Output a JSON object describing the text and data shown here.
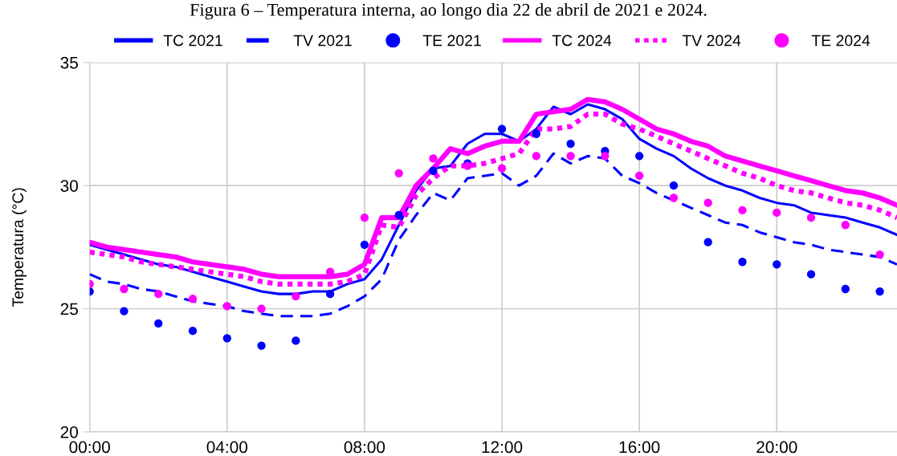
{
  "chart_data": {
    "type": "line",
    "title": "Figura 6 – Temperatura interna, ao longo dia 22 de abril de 2021 e 2024.",
    "ylabel": "Temperatura (°C)",
    "xlim": [
      0,
      23.5
    ],
    "ylim": [
      20,
      35
    ],
    "yticks": [
      20,
      25,
      30,
      35
    ],
    "xticks": [
      {
        "value": 0,
        "label": "00:00"
      },
      {
        "value": 4,
        "label": "04:00"
      },
      {
        "value": 8,
        "label": "08:00"
      },
      {
        "value": 12,
        "label": "12:00"
      },
      {
        "value": 16,
        "label": "16:00"
      },
      {
        "value": 20,
        "label": "20:00"
      }
    ],
    "grid": true,
    "legend": "top",
    "x": [
      0,
      0.5,
      1,
      1.5,
      2,
      2.5,
      3,
      3.5,
      4,
      4.5,
      5,
      5.5,
      6,
      6.5,
      7,
      7.5,
      8,
      8.5,
      9,
      9.5,
      10,
      10.5,
      11,
      11.5,
      12,
      12.5,
      13,
      13.5,
      14,
      14.5,
      15,
      15.5,
      16,
      16.5,
      17,
      17.5,
      18,
      18.5,
      19,
      19.5,
      20,
      20.5,
      21,
      21.5,
      22,
      22.5,
      23,
      23.5
    ],
    "series": [
      {
        "name": "TC 2021",
        "line_style": "solid",
        "color": "#0000ff",
        "values": [
          27.6,
          27.4,
          27.2,
          27.0,
          26.8,
          26.7,
          26.5,
          26.3,
          26.1,
          25.9,
          25.7,
          25.6,
          25.6,
          25.7,
          25.7,
          26.0,
          26.2,
          27.0,
          28.4,
          29.8,
          30.7,
          30.8,
          31.7,
          32.1,
          32.1,
          31.8,
          32.3,
          33.2,
          32.9,
          33.3,
          33.1,
          32.7,
          31.9,
          31.5,
          31.2,
          30.7,
          30.3,
          30.0,
          29.8,
          29.5,
          29.3,
          29.2,
          28.9,
          28.8,
          28.7,
          28.5,
          28.3,
          28.0
        ]
      },
      {
        "name": "TV 2021",
        "line_style": "dashed",
        "color": "#0000ff",
        "values": [
          26.4,
          26.1,
          26.0,
          25.8,
          25.7,
          25.5,
          25.3,
          25.2,
          25.1,
          24.9,
          24.8,
          24.7,
          24.7,
          24.7,
          24.8,
          25.1,
          25.5,
          26.2,
          27.8,
          28.8,
          29.7,
          29.4,
          30.3,
          30.4,
          30.5,
          30.0,
          30.4,
          31.3,
          30.9,
          31.2,
          31.1,
          30.4,
          30.1,
          29.7,
          29.4,
          29.1,
          28.8,
          28.5,
          28.4,
          28.1,
          27.9,
          27.7,
          27.6,
          27.4,
          27.3,
          27.2,
          27.1,
          26.8
        ]
      },
      {
        "name": "TE 2021",
        "type": "scatter",
        "marker": "circle",
        "color": "#0000ff",
        "x": [
          0,
          1,
          2,
          3,
          4,
          5,
          6,
          7,
          8,
          9,
          10,
          11,
          12,
          13,
          14,
          15,
          16,
          17,
          18,
          19,
          20,
          21,
          22,
          23
        ],
        "values": [
          25.7,
          24.9,
          24.4,
          24.1,
          23.8,
          23.5,
          23.7,
          25.6,
          27.6,
          28.8,
          30.6,
          30.9,
          32.3,
          32.1,
          31.7,
          31.4,
          31.2,
          30.0,
          27.7,
          26.9,
          26.8,
          26.4,
          25.8,
          25.7
        ]
      },
      {
        "name": "TC 2024",
        "line_style": "solid",
        "color": "#ff00ff",
        "values": [
          27.7,
          27.5,
          27.4,
          27.3,
          27.2,
          27.1,
          26.9,
          26.8,
          26.7,
          26.6,
          26.4,
          26.3,
          26.3,
          26.3,
          26.3,
          26.4,
          26.8,
          28.7,
          28.7,
          30.0,
          30.7,
          31.5,
          31.3,
          31.6,
          31.8,
          31.8,
          32.9,
          33.0,
          33.1,
          33.5,
          33.4,
          33.1,
          32.7,
          32.3,
          32.1,
          31.8,
          31.6,
          31.2,
          31.0,
          30.8,
          30.6,
          30.4,
          30.2,
          30.0,
          29.8,
          29.7,
          29.5,
          29.2
        ]
      },
      {
        "name": "TV 2024",
        "line_style": "dotted",
        "color": "#ff00ff",
        "values": [
          27.3,
          27.2,
          27.1,
          26.9,
          26.8,
          26.7,
          26.6,
          26.5,
          26.4,
          26.3,
          26.1,
          26.0,
          26.0,
          26.0,
          26.0,
          26.1,
          26.4,
          28.4,
          28.3,
          29.6,
          30.3,
          30.8,
          30.8,
          30.9,
          31.1,
          31.3,
          32.3,
          32.3,
          32.4,
          32.9,
          32.9,
          32.5,
          32.3,
          32.0,
          31.7,
          31.4,
          31.1,
          30.8,
          30.5,
          30.3,
          30.0,
          29.8,
          29.7,
          29.5,
          29.3,
          29.2,
          29.0,
          28.7
        ]
      },
      {
        "name": "TE 2024",
        "type": "scatter",
        "marker": "circle",
        "color": "#ff00ff",
        "x": [
          0,
          1,
          2,
          3,
          4,
          5,
          6,
          7,
          8,
          9,
          10,
          11,
          12,
          13,
          14,
          15,
          16,
          17,
          18,
          19,
          20,
          21,
          22,
          23
        ],
        "values": [
          26.0,
          25.8,
          25.6,
          25.4,
          25.1,
          25.0,
          25.5,
          26.5,
          28.7,
          30.5,
          31.1,
          30.8,
          30.7,
          31.2,
          31.2,
          31.2,
          30.4,
          29.5,
          29.3,
          29.0,
          28.9,
          28.7,
          28.4,
          27.2
        ]
      }
    ]
  }
}
